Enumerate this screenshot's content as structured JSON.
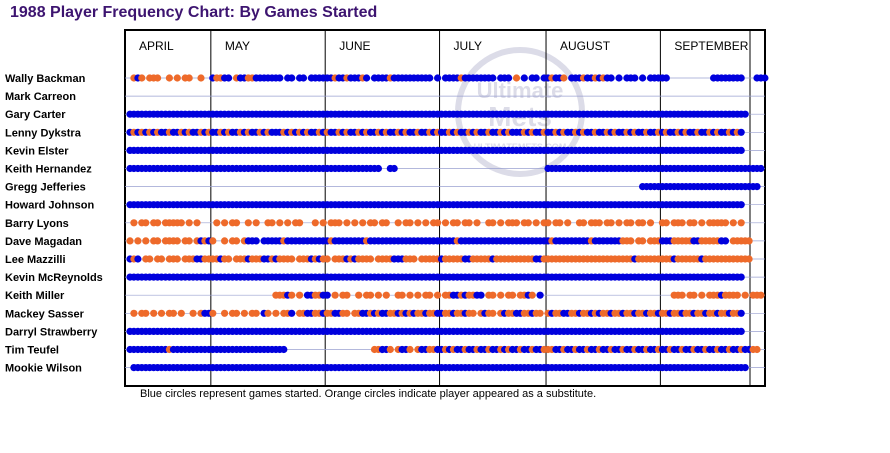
{
  "chart_data": {
    "type": "scatter",
    "title": "1988 Player Frequency Chart: By Games Started",
    "caption": "Blue circles represent games started. Orange circles indicate player appeared as a substitute.",
    "months": [
      "APRIL",
      "MAY",
      "JUNE",
      "JULY",
      "AUGUST",
      "SEPTEMBER"
    ],
    "month_game_ranges": [
      [
        1,
        21
      ],
      [
        22,
        50
      ],
      [
        51,
        79
      ],
      [
        80,
        106
      ],
      [
        107,
        135
      ],
      [
        136,
        160
      ]
    ],
    "x_range": [
      1,
      160
    ],
    "colors": {
      "started": "#0000dd",
      "substitute": "#ee6a2a",
      "title": "#3d1470",
      "watermark": "#dcdce8"
    },
    "watermark": {
      "line1": "Ultimate",
      "line2": "Mets",
      "line3": "ULTIMATEMETS.COM"
    },
    "players": [
      {
        "name": "Wally Backman",
        "s": "0SBS0SSS00S0S0SS00S00BSSBB0SBBSSBBBBBBB0BB0BB0BBBBBBSBBSBBBSB0BBBBSBBBBBBBBBB0B0BBBBSBBBBBBBB0BBB0S0B0BB0BBSBBS0BBBSBBSBSBB0B0BBB0B0BBBBB00000000000BBBBBBBB000BBB"
      },
      {
        "name": "Mark Carreon",
        "s": "0000000000000000000000000000000000000000000000000000000000000000000000000000000000000000000000000000000000000000000000000000000000000000000000000000000000000000"
      },
      {
        "name": "Gary Carter",
        "s": "BBBBBBBBBBBBBBBBBBBBBBBBBBBBBBBBBBBBBBBBBBBBBBBBBBBBBBBBBBBBBBBBBBBBBBBBBBBBBBBBBBBBBBBBBBBBBBBBBBBBBBBBBBBBBBBBBBBBBBBBBBBBBBBBBBBBBBBBBBBBBBBBBBBBBBBBBBBBB"
      },
      {
        "name": "Lenny Dykstra",
        "s": "BSBSBSBSBBSBBSBSBBSBSBBSBSBBSBSBBSBSBBBSBSBSBSBBSBSBBSBSBBSBSBBSBSBBSBSBBSBBSBSBBSBSBBSBSBBSBBSBSBBBSBSBBSBBSBSBBSBSBBSBBSBSBBSBSBBSBBSBSBBSBSBBSBBSBSBBSBSB"
      },
      {
        "name": "Kevin Elster",
        "s": "BBBBBBBBBBBBBBBBBBBBBBBBBBBBBBBBBBBBBBBBBBBBBBBBBBBBBBBBBBBBBBBBBBBBBBBBBBBBBBBBBBBBBBBBBBBBBBBBBBBBBBBBBBBBBBBBBBBBBBBBBBBBBBBBBBBBBBBBBBBBBBBBBBBBBBBBBBBB"
      },
      {
        "name": "Keith Hernandez",
        "s": "BBBBBBBBBBBBBBBBBBBBBBBBBBBBBBBBBBBBBBBBBBBBBBBBBBBBBBBBBBBBBBBB00BB00000000000000000000000000000000000000BBBBBBBBBBBBBBBBBBBBBBBBBBBBBBBBBBBBBBBBBBBBBBBBBBBBBBB"
      },
      {
        "name": "Gregg Jefferies",
        "s": "0000000000000000000000000000000000000000000000000000000000000000000000000000000000000000000000000000000000000000000000000000000000BBBBBBBBBBBBBBBBBBBBBBBBBBBBBB"
      },
      {
        "name": "Howard Johnson",
        "s": "BBBBBBBBBBBBBBBBBBBBBBBBBBBBBBBBBBBBBBBBBBBBBBBBBBBBBBBBBBBBBBBBBBBBBBBBBBBBBBBBBBBBBBBBBBBBBBBBBBBBBBBBBBBBBBBBBBBBBBBBBBBBBBBBBBBBBBBBBBBBBBBBBBBBBBBBBBBB"
      },
      {
        "name": "Barry Lyons",
        "s": "0S0SS0SS0SSSSS0S0S0000S0S0SS00S0S00SS0S0S0SS000S0S0SSS0S0S0S0SS0SS00S0SS0S0S0SS0S0SS0SS0S00SS0S0SSS0SS0S0SS0SS0S00SS0SSS0SS0S0SS0SS0S00SS0SSS0SS0S0SSSSS0S0S"
      },
      {
        "name": "Dave Magadan",
        "s": "S0S0S0SS0SSSS0SS0SBSBS00S0SS0SBBB0BBBBBSBBBBBBBBBBBSBBBBBBBBSBBBBBBBBBBBBBBBBBBBBBBSBBBBBBBBBBBBBBBBBBBBBBBSBBBBBBBBBSBBBBBBBSSS0SS0SSSBBBSSSSSBBSSSSSBB0SSSSS"
      },
      {
        "name": "Lee Mazzilli",
        "s": "BSB0SS0SS0SSS0SSSBBSSSSBSS0SSSBSSSBBSBSSSS0SSSBSBSS0SSSBSBSSSS0SSSSBBBSSS0SSSSSBSSSSSBBSSSSSBSSSSSSSSSSBBSSSSSSSSSSSSSSSSSSSSSSSBSSSSSSSSSBSSSSSSBSSSSSSSSSSSS"
      },
      {
        "name": "Kevin McReynolds",
        "s": "BBBBBBBBBBBBBBBBBBBBBBBBBBBBBBBBBBBBBBBBBBBBBBBBBBBBBBBBBBBBBBBBBBBBBBBBBBBBBBBBBBBBBBBBBBBBBBBBBBBBBBBBBBBBBBBBBBBBBBBBBBBBBBBBBBBBBBBBBBBBBBBBBBBBBBBBBBBB"
      },
      {
        "name": "Keith Miller",
        "s": "0000000000000000000000000000000000000SSSBS0S0BBSSBB0S0SS00S0SS0S0S00SS0S0S0SS0S0SSBBSBSSBB0SS0S0SS0SSBS0B000000000000000000000000000000000SSS0SS0S0SSSBSSSS0S0SSS"
      },
      {
        "name": "Mackey Sasser",
        "s": "0S0SS0S0S0SS0S00S0SBBS00S0SS0S0SS0BS0S0SSB0SSBBSSBSSBBSS0SSBBSBSBBSSBSBSBSSBSSBBSSBSSBSS0SBSS0SBSSBBSSBSS0SBSSBBSSBSSBSBSSBSSBSSBSSBSSBSSBSSBSSBSSBSSBSSBSSB"
      },
      {
        "name": "Darryl Strawberry",
        "s": "BBBBBBBBBBBBBBBBBBBBBBBBBBBBBBBBBBBBBBBBBBBBBBBBBBBBBBBBBBBBBBBBBBBBBBBBBBBBBBBBBBBBBBBBBBBBBBBBBBBBBBBBBBBBBBBBBBBBBBBBBBBBBBBBBBBBBBBBBBBBBBBBBBBBBBBBBBBB"
      },
      {
        "name": "Tim Teufel",
        "s": "BBBBBBBBBBSBBBBBBBBBBBBBBBBBBBBBBBBBBBBB0000000000000000000000SSBBS0SBBS0SBBSSBBSBSBBSBBSBBSBBSBSBBSBBSBBSSSBBSBBSBBSBBSBBSBBSBBSBBSBBSBBSBBSBBSBBSBBSBBSBBSBBSS"
      },
      {
        "name": "Mookie Wilson",
        "s": "0BBBBBBBBBBBBBBBBBBBBBBBBBBBBBBBBBBBBBBBBBBBBBBBBBBBBBBBBBBBBBBBBBBBBBBBBBBBBBBBBBBBBBBBBBBBBBBBBBBBBBBBBBBBBBBBBBBBBBBBBBBBBBBBBBBBBBBBBBBBBBBBBBBBBBBBBBBBB"
      }
    ]
  }
}
